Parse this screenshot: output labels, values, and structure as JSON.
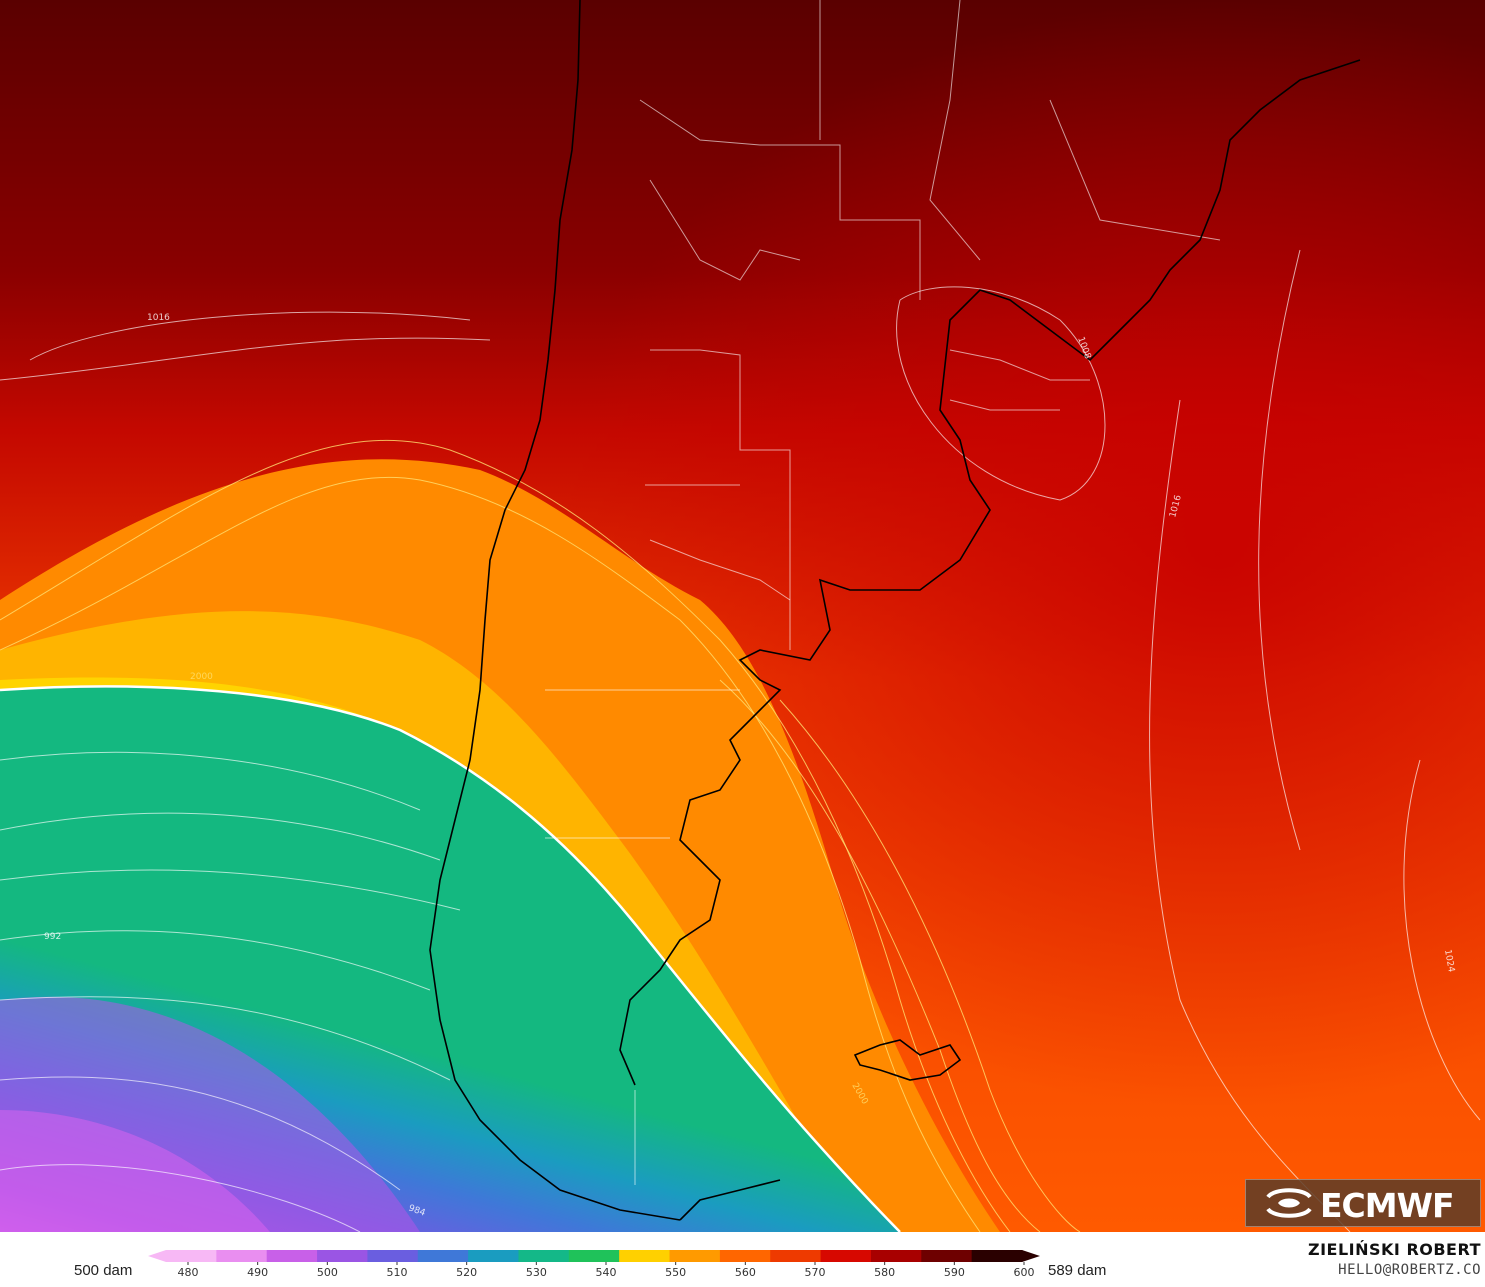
{
  "map": {
    "isobar_labels": [
      "1016",
      "1008",
      "1016",
      "1024",
      "992",
      "984",
      "1000"
    ],
    "height_labels": [
      "2000",
      "2000"
    ]
  },
  "colorbar": {
    "ticks": [
      "480",
      "490",
      "500",
      "510",
      "520",
      "530",
      "540",
      "550",
      "560",
      "570",
      "580",
      "590",
      "600"
    ],
    "left_label": "500 dam",
    "right_label": "589 dam",
    "colors": [
      "#f7b8f5",
      "#e98ef0",
      "#c860e8",
      "#9a55e4",
      "#6a5ee0",
      "#3f78d8",
      "#1a9cc0",
      "#14b888",
      "#1fc25a",
      "#ffd000",
      "#ff9a00",
      "#ff6600",
      "#ee3a00",
      "#d70800",
      "#a80000",
      "#6e0000",
      "#2a0000"
    ]
  },
  "branding": {
    "logo": "ECMWF",
    "author": "ZIELIŃSKI ROBERT",
    "email": "HELLO@ROBERTZ.CO"
  }
}
